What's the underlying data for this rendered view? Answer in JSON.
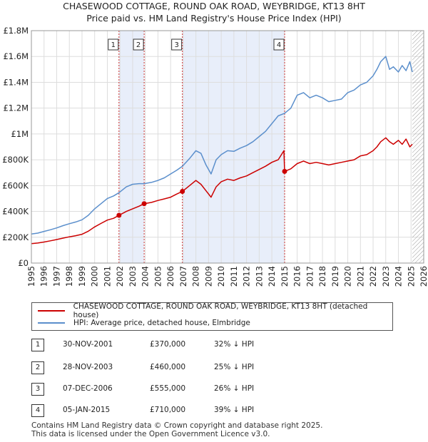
{
  "title_line1": "CHASEWOOD COTTAGE, ROUND OAK ROAD, WEYBRIDGE, KT13 8HT",
  "title_line2": "Price paid vs. HM Land Registry's House Price Index (HPI)",
  "legend": {
    "property_label": "CHASEWOOD COTTAGE, ROUND OAK ROAD, WEYBRIDGE, KT13 8HT (detached house)",
    "hpi_label": "HPI: Average price, detached house, Elmbridge"
  },
  "colors": {
    "property": "#cc0000",
    "hpi": "#5b8fcc",
    "shade": "#e8eefa",
    "grid": "#dddddd"
  },
  "transactions": [
    {
      "num": "1",
      "date": "30-NOV-2001",
      "price": "£370,000",
      "hpi": "32% ↓ HPI"
    },
    {
      "num": "2",
      "date": "28-NOV-2003",
      "price": "£460,000",
      "hpi": "25% ↓ HPI"
    },
    {
      "num": "3",
      "date": "07-DEC-2006",
      "price": "£555,000",
      "hpi": "26% ↓ HPI"
    },
    {
      "num": "4",
      "date": "05-JAN-2015",
      "price": "£710,000",
      "hpi": "39% ↓ HPI"
    }
  ],
  "footer_line1": "Contains HM Land Registry data © Crown copyright and database right 2025.",
  "footer_line2": "This data is licensed under the Open Government Licence v3.0.",
  "chart_data": {
    "type": "line",
    "title": "CHASEWOOD COTTAGE, ROUND OAK ROAD, WEYBRIDGE, KT13 8HT",
    "subtitle": "Price paid vs. HM Land Registry's House Price Index (HPI)",
    "xlim": [
      1995,
      2026
    ],
    "ylim": [
      0,
      1800000
    ],
    "x_ticks": [
      1995,
      1996,
      1997,
      1998,
      1999,
      2000,
      2001,
      2002,
      2003,
      2004,
      2005,
      2006,
      2007,
      2008,
      2009,
      2010,
      2011,
      2012,
      2013,
      2014,
      2015,
      2016,
      2017,
      2018,
      2019,
      2020,
      2021,
      2022,
      2023,
      2024,
      2025,
      2026
    ],
    "y_ticks": [
      {
        "v": 0,
        "label": "£0"
      },
      {
        "v": 200000,
        "label": "£200K"
      },
      {
        "v": 400000,
        "label": "£400K"
      },
      {
        "v": 600000,
        "label": "£600K"
      },
      {
        "v": 800000,
        "label": "£800K"
      },
      {
        "v": 1000000,
        "label": "£1M"
      },
      {
        "v": 1200000,
        "label": "£1.2M"
      },
      {
        "v": 1400000,
        "label": "£1.4M"
      },
      {
        "v": 1600000,
        "label": "£1.6M"
      },
      {
        "v": 1800000,
        "label": "£1.8M"
      }
    ],
    "shaded_ranges": [
      [
        2001.92,
        2003.91
      ],
      [
        2006.93,
        2015.01
      ]
    ],
    "future_from": 2025.1,
    "sales": [
      {
        "label": "1",
        "x": 2001.92,
        "y": 370000
      },
      {
        "label": "2",
        "x": 2003.91,
        "y": 460000
      },
      {
        "label": "3",
        "x": 2006.93,
        "y": 555000
      },
      {
        "label": "4",
        "x": 2015.01,
        "y": 710000
      }
    ],
    "series": [
      {
        "name": "HPI: Average price, detached house, Elmbridge",
        "x": [
          1995,
          1995.5,
          1996,
          1996.5,
          1997,
          1997.5,
          1998,
          1998.5,
          1999,
          1999.5,
          2000,
          2000.5,
          2001,
          2001.5,
          2001.92,
          2002.5,
          2003,
          2003.5,
          2003.91,
          2004.5,
          2005,
          2005.5,
          2006,
          2006.5,
          2006.93,
          2007.5,
          2008,
          2008.4,
          2008.8,
          2009.2,
          2009.6,
          2010,
          2010.5,
          2011,
          2011.5,
          2012,
          2012.5,
          2013,
          2013.5,
          2014,
          2014.5,
          2015.01,
          2015.5,
          2016,
          2016.5,
          2017,
          2017.5,
          2018,
          2018.5,
          2019,
          2019.5,
          2020,
          2020.5,
          2021,
          2021.5,
          2022,
          2022.3,
          2022.6,
          2023,
          2023.3,
          2023.6,
          2024,
          2024.3,
          2024.6,
          2024.9,
          2025.1
        ],
        "values": [
          225000,
          232000,
          245000,
          258000,
          272000,
          290000,
          305000,
          318000,
          335000,
          370000,
          420000,
          460000,
          500000,
          520000,
          545000,
          590000,
          610000,
          615000,
          615000,
          625000,
          640000,
          660000,
          690000,
          720000,
          750000,
          810000,
          870000,
          850000,
          760000,
          690000,
          800000,
          840000,
          870000,
          865000,
          890000,
          910000,
          940000,
          980000,
          1020000,
          1080000,
          1140000,
          1160000,
          1200000,
          1300000,
          1320000,
          1280000,
          1300000,
          1280000,
          1250000,
          1260000,
          1270000,
          1320000,
          1340000,
          1380000,
          1400000,
          1450000,
          1500000,
          1560000,
          1600000,
          1500000,
          1520000,
          1480000,
          1530000,
          1490000,
          1560000,
          1480000
        ]
      },
      {
        "name": "CHASEWOOD COTTAGE, ROUND OAK ROAD, WEYBRIDGE, KT13 8HT (detached house)",
        "x": [
          1995,
          1995.5,
          1996,
          1996.5,
          1997,
          1997.5,
          1998,
          1998.5,
          1999,
          1999.5,
          2000,
          2000.5,
          2001,
          2001.5,
          2001.92,
          2002.5,
          2003,
          2003.5,
          2003.91,
          2004.5,
          2005,
          2005.5,
          2006,
          2006.5,
          2006.93,
          2007.5,
          2008,
          2008.4,
          2008.8,
          2009.2,
          2009.6,
          2010,
          2010.5,
          2011,
          2011.5,
          2012,
          2012.5,
          2013,
          2013.5,
          2014,
          2014.5,
          2014.95,
          2015.01,
          2015.5,
          2016,
          2016.5,
          2017,
          2017.5,
          2018,
          2018.5,
          2019,
          2019.5,
          2020,
          2020.5,
          2021,
          2021.5,
          2022,
          2022.3,
          2022.6,
          2023,
          2023.3,
          2023.6,
          2024,
          2024.3,
          2024.6,
          2024.9,
          2025.1
        ],
        "values": [
          150000,
          155000,
          163000,
          172000,
          182000,
          193000,
          203000,
          212000,
          223000,
          247000,
          280000,
          307000,
          333000,
          347000,
          370000,
          400000,
          420000,
          440000,
          460000,
          470000,
          485000,
          497000,
          510000,
          535000,
          555000,
          600000,
          640000,
          610000,
          560000,
          510000,
          590000,
          630000,
          650000,
          640000,
          660000,
          675000,
          700000,
          725000,
          750000,
          780000,
          800000,
          870000,
          710000,
          730000,
          770000,
          790000,
          770000,
          780000,
          770000,
          760000,
          770000,
          780000,
          790000,
          800000,
          830000,
          840000,
          870000,
          900000,
          940000,
          970000,
          940000,
          920000,
          950000,
          920000,
          960000,
          900000,
          920000
        ]
      }
    ]
  }
}
